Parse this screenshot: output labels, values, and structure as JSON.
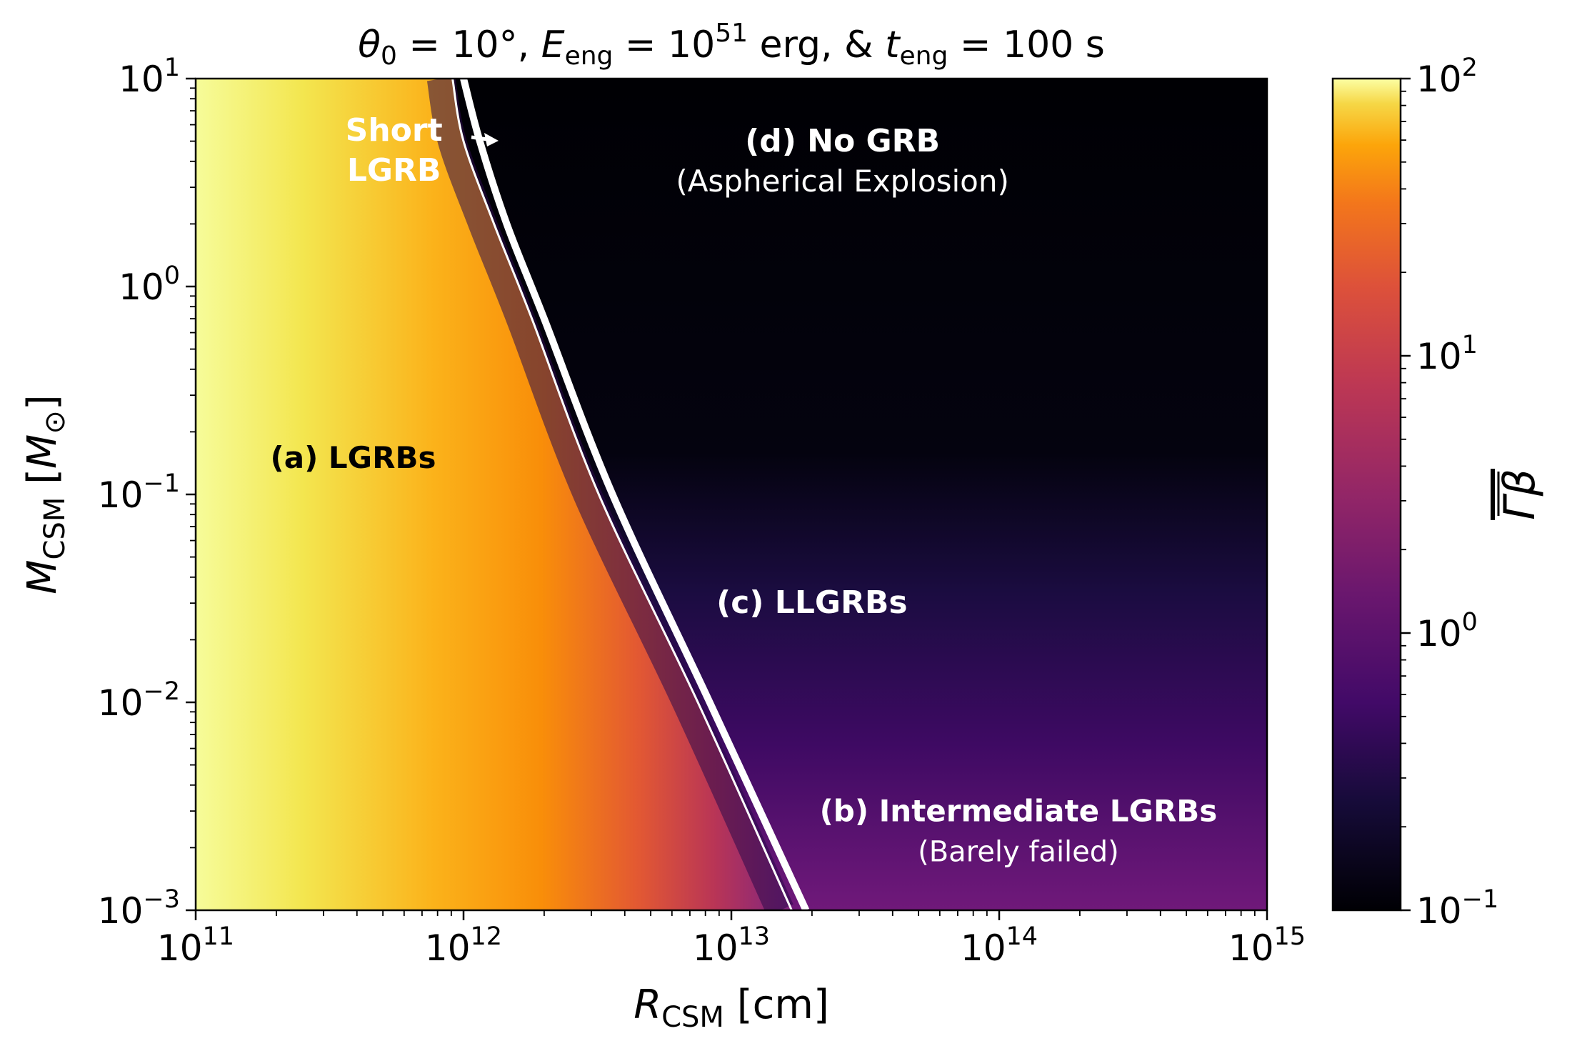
{
  "chart_data": {
    "type": "heatmap",
    "title": {
      "theta_sym": "θ",
      "theta_sub": "0",
      "theta_val": " = 10°, ",
      "e_sym": "E",
      "e_sub": "eng",
      "e_val": " = 10",
      "e_exp": "51",
      "e_unit": " erg, & ",
      "t_sym": "t",
      "t_sub": "eng",
      "t_val": " = 100 s"
    },
    "xlabel": {
      "sym": "R",
      "sub": "CSM",
      "unit": " [cm]"
    },
    "ylabel": {
      "sym": "M",
      "sub": "CSM",
      "unit_open": " [",
      "unit_sym": "M",
      "unit_sub": "⊙",
      "unit_close": "]"
    },
    "colorbar_label": "Γβ",
    "x_scale": "log",
    "y_scale": "log",
    "xlim": [
      100000000000.0,
      1000000000000000.0
    ],
    "ylim": [
      0.001,
      10
    ],
    "colorbar_range": [
      0.1,
      100
    ],
    "colormap": "inferno",
    "x_ticks": [
      {
        "base": "10",
        "exp": "11"
      },
      {
        "base": "10",
        "exp": "12"
      },
      {
        "base": "10",
        "exp": "13"
      },
      {
        "base": "10",
        "exp": "14"
      },
      {
        "base": "10",
        "exp": "15"
      }
    ],
    "y_ticks": [
      {
        "base": "10",
        "exp": "−3"
      },
      {
        "base": "10",
        "exp": "−2"
      },
      {
        "base": "10",
        "exp": "−1"
      },
      {
        "base": "10",
        "exp": "0"
      },
      {
        "base": "10",
        "exp": "1"
      }
    ],
    "colorbar_ticks": [
      {
        "base": "10",
        "exp": "−1"
      },
      {
        "base": "10",
        "exp": "0"
      },
      {
        "base": "10",
        "exp": "1"
      },
      {
        "base": "10",
        "exp": "2"
      }
    ],
    "boundary_thin": [
      [
        910000000000.0,
        10
      ],
      [
        1000000000000.0,
        5
      ],
      [
        1300000000000.0,
        2
      ],
      [
        1800000000000.0,
        0.7
      ],
      [
        3200000000000.0,
        0.1
      ],
      [
        7500000000000.0,
        0.01
      ],
      [
        16800000000000.0,
        0.001
      ]
    ],
    "boundary_thick": [
      [
        1000000000000.0,
        10
      ],
      [
        1150000000000.0,
        5
      ],
      [
        1450000000000.0,
        2
      ],
      [
        2000000000000.0,
        0.7
      ],
      [
        3600000000000.0,
        0.1
      ],
      [
        8300000000000.0,
        0.01
      ],
      [
        19000000000000.0,
        0.001
      ]
    ],
    "annotations": [
      {
        "id": "lgrb",
        "lines": [
          "(a) LGRBs"
        ],
        "x": 190000000000.0,
        "y": 0.15,
        "color": "#000000"
      },
      {
        "id": "short",
        "lines": [
          "Short",
          "LGRB"
        ],
        "x": 550000000000.0,
        "y": 4.5,
        "color": "#ffffff"
      },
      {
        "id": "nogrb",
        "lines": [
          "(d) No GRB",
          "(Aspherical Explosion)"
        ],
        "x": 26000000000000.0,
        "y": 4,
        "color": "#ffffff"
      },
      {
        "id": "llgrb",
        "lines": [
          "(c) LLGRBs"
        ],
        "x": 20000000000000.0,
        "y": 0.03,
        "color": "#ffffff"
      },
      {
        "id": "intermediate",
        "lines": [
          "(b) Intermediate LGRBs",
          "(Barely failed)"
        ],
        "x": 118000000000000.0,
        "y": 0.0024,
        "color": "#ffffff"
      }
    ]
  }
}
